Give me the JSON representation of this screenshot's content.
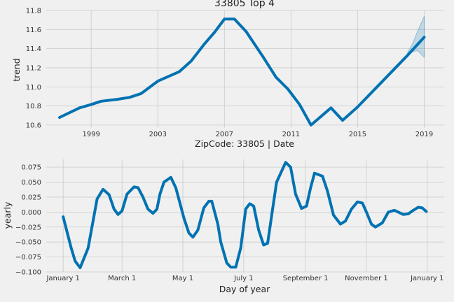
{
  "chart_data": [
    {
      "type": "line",
      "title": "33805 Top 4",
      "xlabel": "ZipCode: 33805 | Date",
      "ylabel": "trend",
      "xlim": [
        1996.3,
        2020.2
      ],
      "ylim": [
        10.57,
        11.8
      ],
      "grid": true,
      "x_ticks": [
        1999,
        2003,
        2007,
        2011,
        2015,
        2019
      ],
      "y_ticks": [
        10.6,
        10.8,
        11.0,
        11.2,
        11.4,
        11.6,
        11.8
      ],
      "series": [
        {
          "color": "#0072b2",
          "x": [
            1997.1,
            1998.3,
            1998.9,
            1999.6,
            2000.6,
            2001.3,
            2002.0,
            2003.0,
            2004.3,
            2005.0,
            2005.8,
            2006.4,
            2007.0,
            2007.6,
            2008.3,
            2009.3,
            2010.1,
            2010.8,
            2011.5,
            2012.2,
            2013.4,
            2014.1,
            2015.0,
            2016.0,
            2017.0,
            2018.0,
            2019.0
          ],
          "values": [
            10.68,
            10.78,
            10.81,
            10.85,
            10.87,
            10.89,
            10.93,
            11.06,
            11.16,
            11.27,
            11.45,
            11.57,
            11.71,
            11.71,
            11.58,
            11.32,
            11.1,
            10.98,
            10.82,
            10.6,
            10.78,
            10.65,
            10.79,
            10.97,
            11.15,
            11.33,
            11.52
          ]
        }
      ],
      "uncertainty_band": {
        "x": [
          2018.0,
          2018.3,
          2018.6,
          2019.0
        ],
        "upper": [
          11.36,
          11.45,
          11.58,
          11.74
        ],
        "lower": [
          11.34,
          11.37,
          11.38,
          11.31
        ]
      }
    },
    {
      "type": "line",
      "title": "",
      "xlabel": "Day of year",
      "ylabel": "yearly",
      "xlim": [
        -17,
        382
      ],
      "ylim": [
        -0.1,
        0.088
      ],
      "grid": true,
      "x_ticks": [
        0,
        59,
        120,
        181,
        243,
        304,
        365
      ],
      "x_tick_labels": [
        "January 1",
        "March 1",
        "May 1",
        "July 1",
        "September 1",
        "November 1",
        "January 1"
      ],
      "y_ticks": [
        -0.1,
        -0.075,
        -0.05,
        -0.025,
        0.0,
        0.025,
        0.05,
        0.075
      ],
      "y_tick_labels": [
        "−0.100",
        "−0.075",
        "−0.050",
        "−0.025",
        "0.000",
        "0.025",
        "0.050",
        "0.075"
      ],
      "series": [
        {
          "color": "#0072b2",
          "x": [
            0,
            8,
            12,
            17,
            25,
            34,
            40,
            46,
            51,
            55,
            59,
            64,
            71,
            75,
            80,
            85,
            90,
            94,
            97,
            101,
            108,
            113,
            121,
            126,
            130,
            135,
            141,
            146,
            149,
            155,
            158,
            164,
            168,
            173,
            178,
            183,
            187,
            191,
            196,
            201,
            205,
            210,
            214,
            223,
            228,
            233,
            239,
            244,
            248,
            252,
            260,
            265,
            271,
            278,
            283,
            289,
            295,
            300,
            304,
            309,
            313,
            320,
            326,
            332,
            336,
            341,
            346,
            351,
            356,
            360,
            364
          ],
          "values": [
            -0.008,
            -0.06,
            -0.082,
            -0.093,
            -0.06,
            0.022,
            0.038,
            0.029,
            0.005,
            -0.004,
            0.002,
            0.03,
            0.042,
            0.041,
            0.025,
            0.005,
            -0.002,
            0.005,
            0.03,
            0.05,
            0.058,
            0.04,
            -0.01,
            -0.035,
            -0.042,
            -0.03,
            0.007,
            0.018,
            0.018,
            -0.02,
            -0.05,
            -0.085,
            -0.092,
            -0.092,
            -0.06,
            0.005,
            0.014,
            0.01,
            -0.03,
            -0.055,
            -0.052,
            0.005,
            0.05,
            0.083,
            0.075,
            0.03,
            0.006,
            0.01,
            0.04,
            0.065,
            0.06,
            0.035,
            -0.005,
            -0.02,
            -0.015,
            0.005,
            0.017,
            0.015,
            0.0,
            -0.02,
            -0.025,
            -0.018,
            0.0,
            0.003,
            0.0,
            -0.004,
            -0.003,
            0.003,
            0.008,
            0.007,
            0.001
          ]
        }
      ]
    }
  ]
}
